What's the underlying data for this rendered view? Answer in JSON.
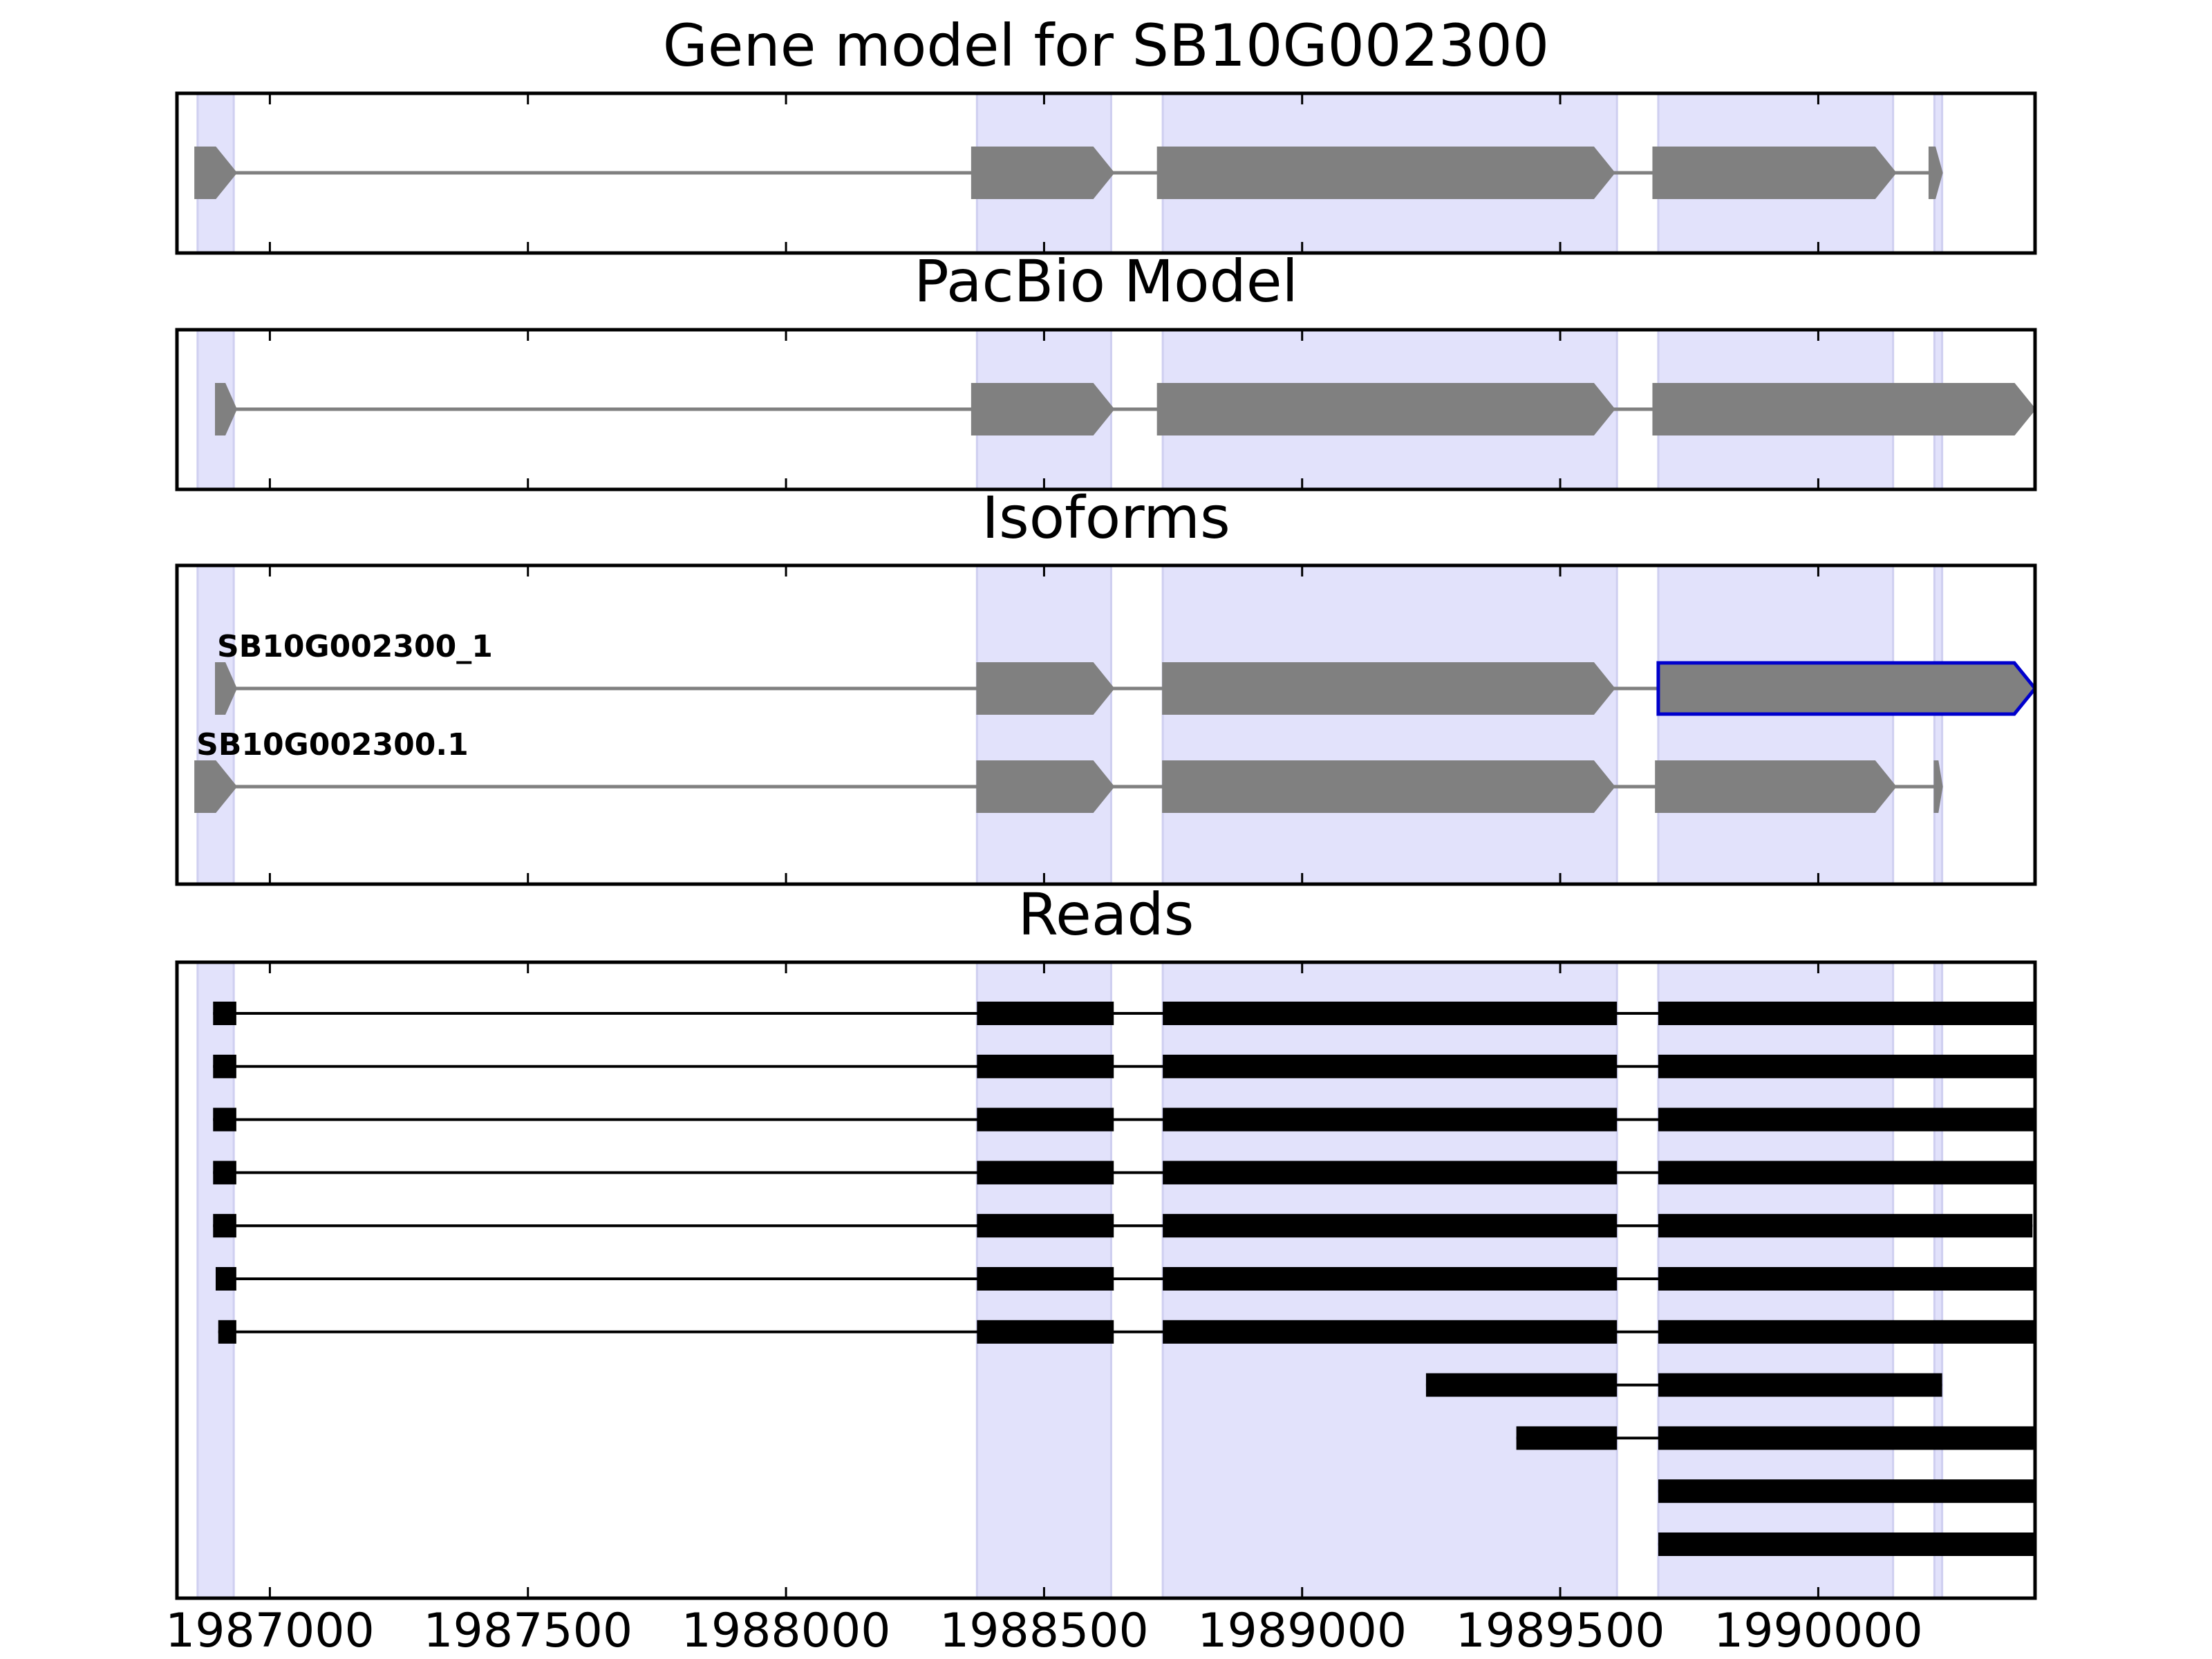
{
  "chart_data": {
    "type": "gene-structure",
    "x_axis": {
      "range": [
        1986820,
        1990420
      ],
      "tick_values": [
        1987000,
        1987500,
        1988000,
        1988500,
        1989000,
        1989500,
        1990000
      ],
      "tick_labels": [
        "1987000",
        "1987500",
        "1988000",
        "1988500",
        "1989000",
        "1989500",
        "1990000"
      ]
    },
    "highlight_color": "#e2e2fb",
    "exon_regions": [
      [
        1986860,
        1986930
      ],
      [
        1988370,
        1988630
      ],
      [
        1988730,
        1989610
      ],
      [
        1989690,
        1990145
      ],
      [
        1990225,
        1990240
      ]
    ],
    "panels": [
      {
        "title": "Gene model for SB10G002300",
        "color": "#808080",
        "tracks": [
          {
            "label": "",
            "highlight_last": false,
            "exons": [
              [
                1986855,
                1986935
              ],
              [
                1988360,
                1988635
              ],
              [
                1988720,
                1989605
              ],
              [
                1989680,
                1990150
              ],
              [
                1990215,
                1990240
              ]
            ]
          }
        ]
      },
      {
        "title": "PacBio Model",
        "color": "#808080",
        "tracks": [
          {
            "label": "",
            "highlight_last": false,
            "exons": [
              [
                1986895,
                1986935
              ],
              [
                1988360,
                1988635
              ],
              [
                1988720,
                1989605
              ],
              [
                1989680,
                1990420
              ]
            ]
          }
        ]
      },
      {
        "title": "Isoforms",
        "color": "#808080",
        "outline_color": "#0000cc",
        "tracks": [
          {
            "label": "SB10G002300_1",
            "highlight_last": true,
            "exons": [
              [
                1986895,
                1986935
              ],
              [
                1988370,
                1988635
              ],
              [
                1988730,
                1989605
              ],
              [
                1989690,
                1990420
              ]
            ]
          },
          {
            "label": "SB10G002300.1",
            "highlight_last": false,
            "exons": [
              [
                1986855,
                1986935
              ],
              [
                1988370,
                1988635
              ],
              [
                1988730,
                1989605
              ],
              [
                1989685,
                1990150
              ],
              [
                1990225,
                1990240
              ]
            ]
          }
        ]
      },
      {
        "title": "Reads",
        "color": "#000000",
        "reads": [
          [
            [
              1986890,
              1986935
            ],
            [
              1988370,
              1988635
            ],
            [
              1988730,
              1989610
            ],
            [
              1989690,
              1990420
            ]
          ],
          [
            [
              1986890,
              1986935
            ],
            [
              1988370,
              1988635
            ],
            [
              1988730,
              1989610
            ],
            [
              1989690,
              1990420
            ]
          ],
          [
            [
              1986890,
              1986935
            ],
            [
              1988370,
              1988635
            ],
            [
              1988730,
              1989610
            ],
            [
              1989690,
              1990420
            ]
          ],
          [
            [
              1986890,
              1986935
            ],
            [
              1988370,
              1988635
            ],
            [
              1988730,
              1989610
            ],
            [
              1989690,
              1990420
            ]
          ],
          [
            [
              1986890,
              1986935
            ],
            [
              1988370,
              1988635
            ],
            [
              1988730,
              1989610
            ],
            [
              1989690,
              1990415
            ]
          ],
          [
            [
              1986895,
              1986935
            ],
            [
              1988370,
              1988635
            ],
            [
              1988730,
              1989610
            ],
            [
              1989690,
              1990425
            ]
          ],
          [
            [
              1986900,
              1986935
            ],
            [
              1988370,
              1988635
            ],
            [
              1988730,
              1989610
            ],
            [
              1989690,
              1990420
            ]
          ],
          [
            [
              1989240,
              1989610
            ],
            [
              1989690,
              1990240
            ]
          ],
          [
            [
              1989415,
              1989610
            ],
            [
              1989690,
              1990420
            ]
          ],
          [
            [
              1989690,
              1990445
            ]
          ],
          [
            [
              1989690,
              1990445
            ]
          ]
        ]
      }
    ]
  }
}
